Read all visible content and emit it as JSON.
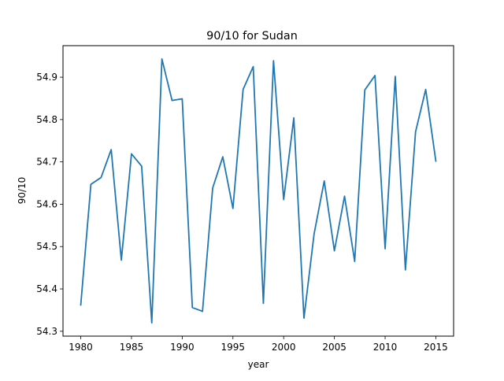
{
  "chart_data": {
    "type": "line",
    "title": "90/10 for Sudan",
    "xlabel": "year",
    "ylabel": "90/10",
    "xlim": [
      1978.25,
      2016.75
    ],
    "ylim": [
      54.2885,
      54.9745
    ],
    "x_ticks": [
      1980,
      1985,
      1990,
      1995,
      2000,
      2005,
      2010,
      2015
    ],
    "y_ticks": [
      54.3,
      54.4,
      54.5,
      54.6,
      54.7,
      54.8,
      54.9
    ],
    "x_tick_labels": [
      "1980",
      "1985",
      "1990",
      "1995",
      "2000",
      "2005",
      "2010",
      "2015"
    ],
    "y_tick_labels": [
      "54.3",
      "54.4",
      "54.5",
      "54.6",
      "54.7",
      "54.8",
      "54.9"
    ],
    "grid": false,
    "color": "#1f77b4",
    "series": [
      {
        "x": [
          1980,
          1981,
          1982,
          1983,
          1984,
          1985,
          1986,
          1987,
          1988,
          1989,
          1990,
          1991,
          1992,
          1993,
          1994,
          1995,
          1996,
          1997,
          1998,
          1999,
          2000,
          2001,
          2002,
          2003,
          2004,
          2005,
          2006,
          2007,
          2008,
          2009,
          2010,
          2011,
          2012,
          2013,
          2014,
          2015
        ],
        "values": [
          54.362,
          54.647,
          54.663,
          54.729,
          54.468,
          54.719,
          54.69,
          54.32,
          54.943,
          54.845,
          54.849,
          54.356,
          54.347,
          54.638,
          54.712,
          54.59,
          54.871,
          54.925,
          54.366,
          54.939,
          54.611,
          54.804,
          54.331,
          54.53,
          54.655,
          54.49,
          54.619,
          54.465,
          54.87,
          54.904,
          54.495,
          54.902,
          54.445,
          54.771,
          54.871,
          54.702
        ]
      }
    ]
  }
}
